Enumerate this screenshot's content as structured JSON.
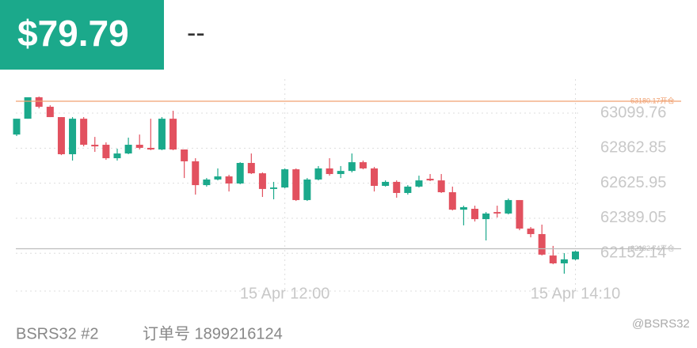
{
  "header": {
    "price": "$79.79",
    "change": "--"
  },
  "chart_data": {
    "type": "candlestick",
    "categories": [
      null,
      null,
      null,
      null,
      null,
      null,
      null,
      null,
      null,
      null,
      null,
      null,
      null,
      null,
      null,
      null,
      null,
      null,
      null,
      null,
      null,
      null,
      null,
      null,
      "15 Apr 12:00",
      null,
      null,
      null,
      null,
      null,
      null,
      null,
      null,
      null,
      null,
      null,
      null,
      null,
      null,
      null,
      null,
      null,
      null,
      null,
      null,
      null,
      null,
      null,
      null,
      null,
      "15 Apr 14:10"
    ],
    "open": [
      62955,
      63062,
      63207,
      63143,
      63073,
      62822,
      63062,
      62886,
      62886,
      62795,
      62827,
      62886,
      62865,
      62854,
      63062,
      62854,
      62774,
      62613,
      62651,
      62672,
      62624,
      62763,
      62693,
      62587,
      62597,
      62720,
      62512,
      62651,
      62726,
      62688,
      62709,
      62768,
      62726,
      62608,
      62635,
      62560,
      62603,
      62656,
      62645,
      62565,
      62447,
      62453,
      62383,
      62431,
      62421,
      62512,
      62319,
      62282,
      62137,
      62084,
      62111
    ],
    "high": [
      63062,
      63207,
      63212,
      63153,
      63073,
      63073,
      63073,
      62939,
      62902,
      62859,
      62934,
      62955,
      63062,
      63073,
      63116,
      62854,
      62795,
      62661,
      62726,
      62683,
      62768,
      62827,
      62699,
      62635,
      62726,
      62726,
      62661,
      62742,
      62795,
      62742,
      62827,
      62779,
      62736,
      62645,
      62645,
      62613,
      62677,
      62688,
      62688,
      62603,
      62474,
      62474,
      62431,
      62474,
      62522,
      62512,
      62330,
      62346,
      62202,
      62153,
      62169
    ],
    "low": [
      62945,
      63062,
      63132,
      63073,
      62816,
      62779,
      62875,
      62838,
      62784,
      62779,
      62822,
      62854,
      62849,
      62849,
      62849,
      62661,
      62549,
      62603,
      62645,
      62570,
      62619,
      62688,
      62533,
      62517,
      62592,
      62506,
      62506,
      62645,
      62677,
      62661,
      62699,
      62720,
      62570,
      62603,
      62528,
      62549,
      62597,
      62640,
      62560,
      62442,
      62341,
      62367,
      62239,
      62394,
      62415,
      62308,
      62260,
      62137,
      62078,
      62014,
      62105
    ],
    "close": [
      63062,
      63207,
      63143,
      63073,
      62822,
      63062,
      62886,
      62875,
      62795,
      62827,
      62886,
      62865,
      62854,
      63062,
      62854,
      62774,
      62613,
      62651,
      62672,
      62624,
      62763,
      62693,
      62587,
      62597,
      62720,
      62512,
      62651,
      62726,
      62688,
      62709,
      62768,
      62726,
      62608,
      62635,
      62560,
      62603,
      62645,
      62645,
      62565,
      62447,
      62464,
      62383,
      62421,
      62421,
      62512,
      62319,
      62282,
      62143,
      62084,
      62111,
      62164
    ],
    "up_color": "#1ba98b",
    "down_color": "#e2515f",
    "ylim": [
      61886,
      63330
    ],
    "yticks": [
      63099.76,
      62862.85,
      62625.95,
      62389.05,
      62152.14
    ],
    "grid": true,
    "lines": [
      {
        "value": 63180.17,
        "label": "63180.17开仓",
        "color": "#f0a070"
      },
      {
        "value": 62182.74,
        "label": "62182.74平仓",
        "color": "#bdbdbd"
      }
    ]
  },
  "footer": {
    "account": "BSRS32 #2",
    "order": "订单号 1899216124",
    "watermark": "@BSRS32"
  }
}
